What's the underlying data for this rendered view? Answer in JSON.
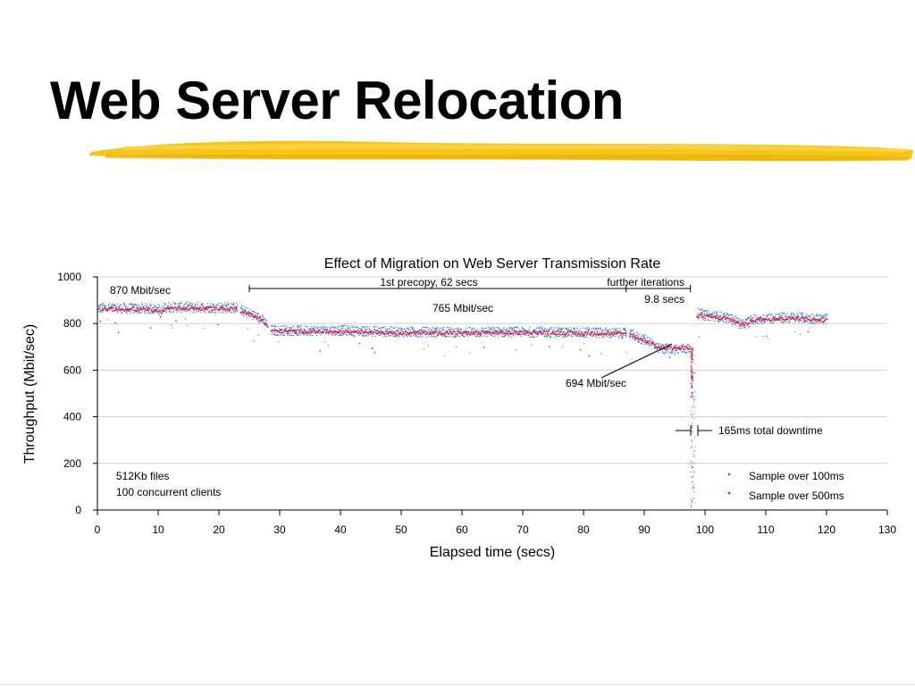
{
  "slide": {
    "title": "Web Server Relocation",
    "accent_color": "#f5c518"
  },
  "chart_data": {
    "type": "scatter",
    "title": "Effect of Migration on Web Server Transmission Rate",
    "xlabel": "Elapsed time (secs)",
    "ylabel": "Throughput (Mbit/sec)",
    "xlim": [
      0,
      130
    ],
    "ylim": [
      0,
      1000
    ],
    "xticks": [
      "0",
      "10",
      "20",
      "30",
      "40",
      "50",
      "60",
      "70",
      "80",
      "90",
      "100",
      "110",
      "120",
      "130"
    ],
    "yticks": [
      "0",
      "200",
      "400",
      "600",
      "800",
      "1000"
    ],
    "grid": "horizontal",
    "legend_position": "bottom-right",
    "series": [
      {
        "name": "Sample over 100ms",
        "color": "#1f6fd0",
        "segments": [
          {
            "x": [
              0,
              10,
              10.3,
              11,
              23
            ],
            "y": [
              868,
              865,
              850,
              872,
              870
            ]
          },
          {
            "x": [
              23.5,
              25,
              27,
              28
            ],
            "y": [
              860,
              845,
              820,
              790
            ]
          },
          {
            "x": [
              28.5,
              40,
              50,
              60,
              70,
              80,
              87
            ],
            "y": [
              772,
              772,
              766,
              764,
              766,
              764,
              760
            ]
          },
          {
            "x": [
              87.5,
              89,
              91,
              92,
              95,
              97.5
            ],
            "y": [
              758,
              740,
              725,
              695,
              692,
              694
            ]
          },
          {
            "x": [
              98.6,
              100,
              103,
              105,
              106,
              108,
              110,
              115,
              120
            ],
            "y": [
              845,
              838,
              830,
              815,
              795,
              820,
              825,
              828,
              820
            ]
          }
        ],
        "noise": 22
      },
      {
        "name": "Sample over 500ms",
        "color": "#e8102a",
        "segments": [
          {
            "x": [
              0,
              10,
              10.3,
              11,
              23
            ],
            "y": [
              865,
              862,
              838,
              868,
              866
            ]
          },
          {
            "x": [
              23.5,
              25,
              27,
              28
            ],
            "y": [
              858,
              842,
              818,
              788
            ]
          },
          {
            "x": [
              28.5,
              40,
              50,
              60,
              70,
              80,
              87
            ],
            "y": [
              770,
              768,
              764,
              762,
              764,
              762,
              758
            ]
          },
          {
            "x": [
              87.5,
              89,
              91,
              92,
              95,
              97.5
            ],
            "y": [
              755,
              738,
              722,
              700,
              696,
              698
            ]
          },
          {
            "x": [
              98.6,
              100,
              103,
              105,
              106,
              108,
              110,
              115,
              120
            ],
            "y": [
              838,
              832,
              826,
              812,
              795,
              818,
              822,
              825,
              815
            ]
          }
        ],
        "noise": 8
      }
    ],
    "downtime_drop": {
      "x": [
        97.6,
        98.3
      ],
      "y_min": 0,
      "y_max": 700
    },
    "annotations": [
      {
        "id": "peak",
        "text": "870 Mbit/sec"
      },
      {
        "id": "plateau",
        "text": "765 Mbit/sec"
      },
      {
        "id": "low",
        "text": "694 Mbit/sec"
      },
      {
        "id": "precopy",
        "text": "1st precopy, 62 secs",
        "range": [
          25,
          87
        ]
      },
      {
        "id": "further",
        "text": "further iterations",
        "range": [
          87,
          97.6
        ]
      },
      {
        "id": "further_duration",
        "text": "9.8 secs"
      },
      {
        "id": "downtime",
        "text": "165ms total downtime"
      },
      {
        "id": "files",
        "text": "512Kb files"
      },
      {
        "id": "clients",
        "text": "100 concurrent clients"
      }
    ]
  }
}
